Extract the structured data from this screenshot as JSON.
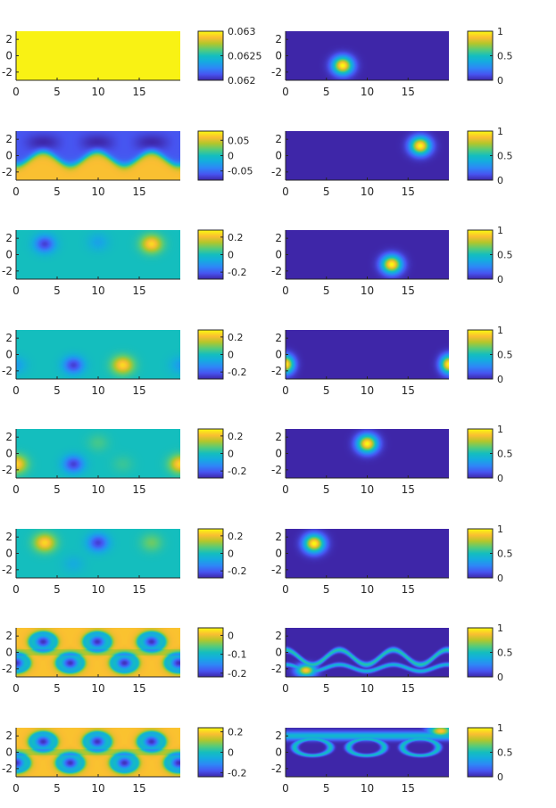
{
  "chart_data": {
    "type": "heatmap",
    "grid": "off",
    "colormap": "parula",
    "x_ticks": [
      "0",
      "5",
      "10",
      "15"
    ],
    "y_ticks": [
      "2",
      "0",
      "-2"
    ],
    "x_range": [
      0,
      20
    ],
    "y_range": [
      -3,
      3
    ],
    "panels": [
      {
        "id": "r1-left",
        "cbar_ticks": [
          {
            "label": "0.063",
            "v": 0.063
          },
          {
            "label": "0.0625",
            "v": 0.0625
          },
          {
            "label": "0.062",
            "v": 0.062
          }
        ],
        "clim": [
          0.062,
          0.063
        ],
        "field": "uniform-high"
      },
      {
        "id": "r1-right",
        "cbar_ticks": [
          {
            "label": "1",
            "v": 1
          },
          {
            "label": "0.5",
            "v": 0.5
          },
          {
            "label": "0",
            "v": 0
          }
        ],
        "clim": [
          0,
          1
        ],
        "field": "blob",
        "blob_center": [
          7,
          -1.2
        ]
      },
      {
        "id": "r2-left",
        "cbar_ticks": [
          {
            "label": "0.05",
            "v": 0.05
          },
          {
            "label": "0",
            "v": 0
          },
          {
            "label": "-0.05",
            "v": -0.05
          }
        ],
        "clim": [
          -0.08,
          0.08
        ],
        "field": "wave-upper-dark"
      },
      {
        "id": "r2-right",
        "cbar_ticks": [
          {
            "label": "1",
            "v": 1
          },
          {
            "label": "0.5",
            "v": 0.5
          },
          {
            "label": "0",
            "v": 0
          }
        ],
        "clim": [
          0,
          1
        ],
        "field": "blob",
        "blob_center": [
          16.5,
          1.2
        ]
      },
      {
        "id": "r3-left",
        "cbar_ticks": [
          {
            "label": "0.2",
            "v": 0.2
          },
          {
            "label": "0",
            "v": 0
          },
          {
            "label": "-0.2",
            "v": -0.2
          }
        ],
        "clim": [
          -0.28,
          0.28
        ],
        "field": "spots",
        "spots": [
          [
            3.5,
            1.3,
            -1
          ],
          [
            10,
            1.5,
            -0.35
          ],
          [
            16.5,
            1.3,
            1
          ]
        ]
      },
      {
        "id": "r3-right",
        "cbar_ticks": [
          {
            "label": "1",
            "v": 1
          },
          {
            "label": "0.5",
            "v": 0.5
          },
          {
            "label": "0",
            "v": 0
          }
        ],
        "clim": [
          0,
          1
        ],
        "field": "blob",
        "blob_center": [
          13,
          -1.2
        ]
      },
      {
        "id": "r4-left",
        "cbar_ticks": [
          {
            "label": "0.2",
            "v": 0.2
          },
          {
            "label": "0",
            "v": 0
          },
          {
            "label": "-0.2",
            "v": -0.2
          }
        ],
        "clim": [
          -0.28,
          0.28
        ],
        "field": "spots",
        "spots": [
          [
            7,
            -1.3,
            -1
          ],
          [
            13,
            -1.3,
            1
          ],
          [
            0,
            -1.3,
            -0.4
          ],
          [
            20,
            -1.3,
            -0.4
          ]
        ]
      },
      {
        "id": "r4-right",
        "cbar_ticks": [
          {
            "label": "1",
            "v": 1
          },
          {
            "label": "0.5",
            "v": 0.5
          },
          {
            "label": "0",
            "v": 0
          }
        ],
        "clim": [
          0,
          1
        ],
        "field": "blob-edges",
        "blob_center": [
          0,
          -1.2
        ]
      },
      {
        "id": "r5-left",
        "cbar_ticks": [
          {
            "label": "0.2",
            "v": 0.2
          },
          {
            "label": "0",
            "v": 0
          },
          {
            "label": "-0.2",
            "v": -0.2
          }
        ],
        "clim": [
          -0.28,
          0.28
        ],
        "field": "spots",
        "spots": [
          [
            7,
            -1.3,
            -1
          ],
          [
            0,
            -1.3,
            1
          ],
          [
            20,
            -1.3,
            1
          ],
          [
            10,
            1.3,
            0.2
          ],
          [
            13,
            -1.3,
            0.15
          ]
        ]
      },
      {
        "id": "r5-right",
        "cbar_ticks": [
          {
            "label": "1",
            "v": 1
          },
          {
            "label": "0.5",
            "v": 0.5
          },
          {
            "label": "0",
            "v": 0
          }
        ],
        "clim": [
          0,
          1
        ],
        "field": "blob",
        "blob_center": [
          10,
          1.2
        ]
      },
      {
        "id": "r6-left",
        "cbar_ticks": [
          {
            "label": "0.2",
            "v": 0.2
          },
          {
            "label": "0",
            "v": 0
          },
          {
            "label": "-0.2",
            "v": -0.2
          }
        ],
        "clim": [
          -0.28,
          0.28
        ],
        "field": "spots",
        "spots": [
          [
            3.5,
            1.3,
            1
          ],
          [
            10,
            1.3,
            -1
          ],
          [
            16.5,
            1.3,
            0.35
          ],
          [
            7,
            -1.3,
            -0.25
          ]
        ]
      },
      {
        "id": "r6-right",
        "cbar_ticks": [
          {
            "label": "1",
            "v": 1
          },
          {
            "label": "0.5",
            "v": 0.5
          },
          {
            "label": "0",
            "v": 0
          }
        ],
        "clim": [
          0,
          1
        ],
        "field": "blob",
        "blob_center": [
          3.5,
          1.2
        ]
      },
      {
        "id": "r7-left",
        "cbar_ticks": [
          {
            "label": "0",
            "v": 0
          },
          {
            "label": "-0.1",
            "v": -0.1
          },
          {
            "label": "-0.2",
            "v": -0.2
          }
        ],
        "clim": [
          -0.22,
          0.04
        ],
        "field": "cells"
      },
      {
        "id": "r7-right",
        "cbar_ticks": [
          {
            "label": "1",
            "v": 1
          },
          {
            "label": "0.5",
            "v": 0.5
          },
          {
            "label": "0",
            "v": 0
          }
        ],
        "clim": [
          0,
          1
        ],
        "field": "filaments-lower"
      },
      {
        "id": "r8-left",
        "cbar_ticks": [
          {
            "label": "0.2",
            "v": 0.2
          },
          {
            "label": "0",
            "v": 0
          },
          {
            "label": "-0.2",
            "v": -0.2
          }
        ],
        "clim": [
          -0.24,
          0.24
        ],
        "field": "cells"
      },
      {
        "id": "r8-right",
        "cbar_ticks": [
          {
            "label": "1",
            "v": 1
          },
          {
            "label": "0.5",
            "v": 0.5
          },
          {
            "label": "0",
            "v": 0
          }
        ],
        "clim": [
          0,
          1
        ],
        "field": "filaments-upper"
      }
    ]
  }
}
